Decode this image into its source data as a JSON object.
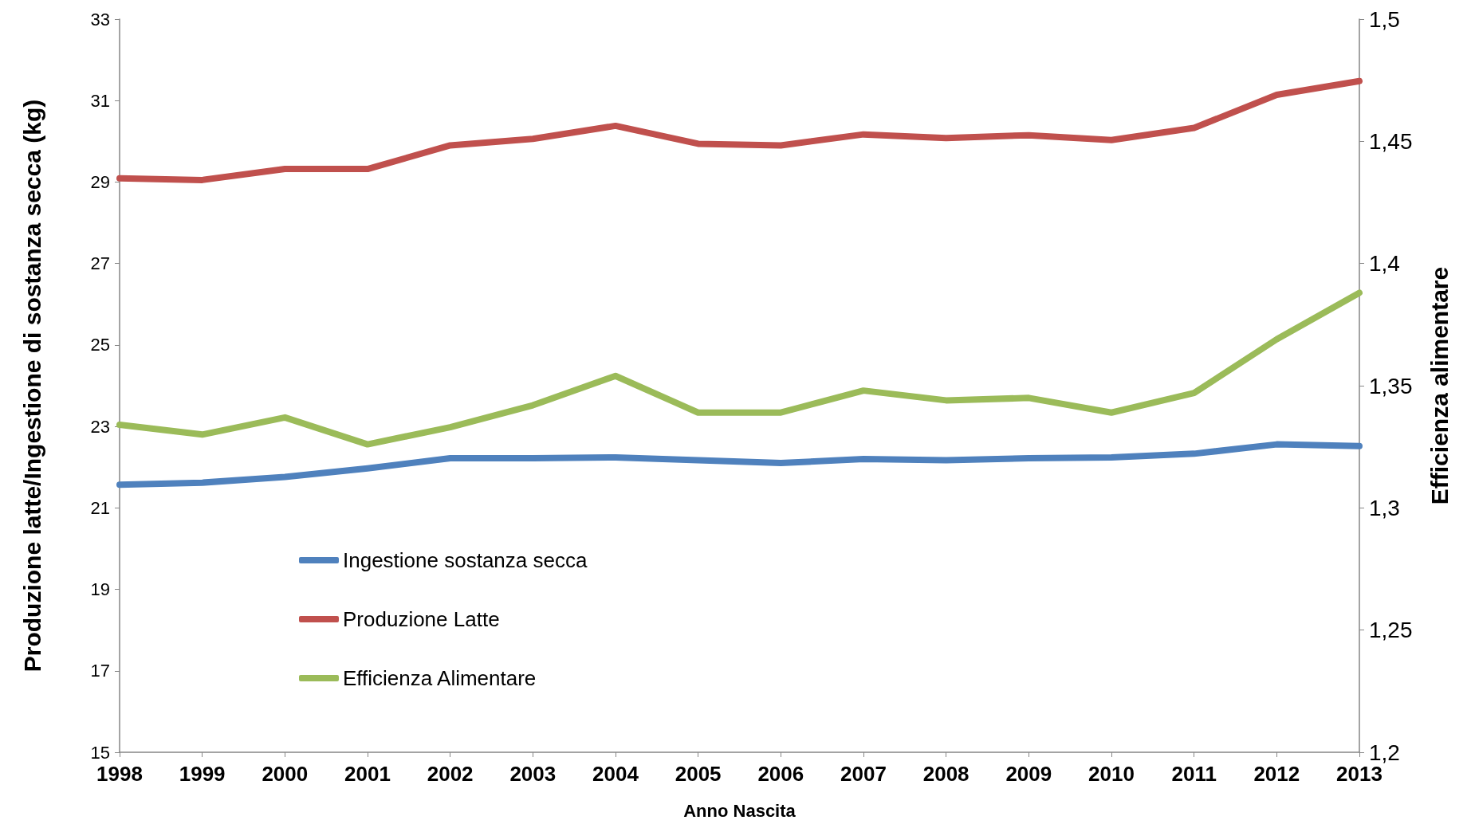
{
  "chart_data": {
    "type": "line",
    "xlabel": "Anno Nascita",
    "ylabel": "Produzione latte/Ingestione di sostanza secca (kg)",
    "y2label": "Efficienza alimentare",
    "categories": [
      "1998",
      "1999",
      "2000",
      "2001",
      "2002",
      "2003",
      "2004",
      "2005",
      "2006",
      "2007",
      "2008",
      "2009",
      "2010",
      "2011",
      "2012",
      "2013"
    ],
    "series": [
      {
        "name": "Ingestione sostanza secca",
        "color": "#4f81bd",
        "values": [
          21.57,
          21.62,
          21.76,
          21.97,
          22.22,
          22.22,
          22.24,
          22.17,
          22.1,
          22.2,
          22.17,
          22.22,
          22.24,
          22.33,
          22.56,
          22.52
        ]
      },
      {
        "name": "Produzione Latte",
        "color": "#c0504d",
        "values": [
          29.09,
          29.05,
          29.32,
          29.32,
          29.9,
          30.06,
          30.38,
          29.94,
          29.9,
          30.17,
          30.08,
          30.15,
          30.03,
          30.33,
          31.14,
          31.48
        ]
      },
      {
        "name": "Efficienza Alimentare",
        "color": "#9bbb59",
        "axis": "y2",
        "values": [
          1.334,
          1.33,
          1.337,
          1.326,
          1.333,
          1.342,
          1.354,
          1.339,
          1.339,
          1.348,
          1.344,
          1.345,
          1.339,
          1.347,
          1.369,
          1.388
        ]
      }
    ],
    "ylim": [
      15,
      33
    ],
    "yticks": [
      15,
      17,
      19,
      21,
      23,
      25,
      27,
      29,
      31,
      33
    ],
    "y2lim": [
      1.2,
      1.5
    ],
    "y2ticks": [
      {
        "value": 1.2,
        "label": "1,2"
      },
      {
        "value": 1.25,
        "label": "1,25"
      },
      {
        "value": 1.3,
        "label": "1,3"
      },
      {
        "value": 1.35,
        "label": "1,35"
      },
      {
        "value": 1.4,
        "label": "1,4"
      },
      {
        "value": 1.45,
        "label": "1,45"
      },
      {
        "value": 1.5,
        "label": "1,5"
      }
    ],
    "grid": false,
    "legend": "bottom left",
    "line_style": "solid"
  }
}
